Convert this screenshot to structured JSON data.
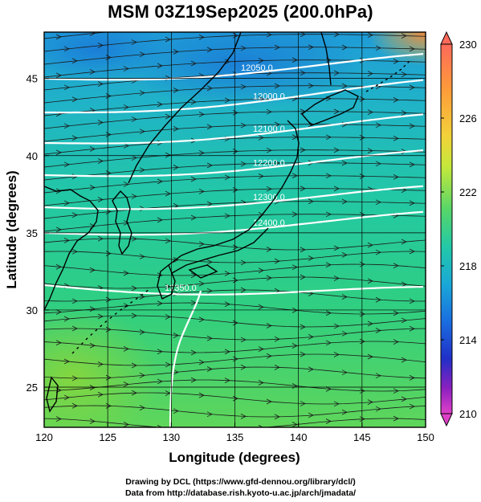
{
  "title": "MSM 03Z19Sep2025 (200.0hPa)",
  "map": {
    "lon_range": [
      120,
      150
    ],
    "lat_range": [
      22.4,
      48
    ],
    "x_ticks": [
      "120",
      "125",
      "130",
      "135",
      "140",
      "145",
      "150"
    ],
    "y_ticks": [
      "25",
      "30",
      "35",
      "40",
      "45"
    ],
    "xlabel": "Longitude (degrees)",
    "ylabel": "Latitude  (degrees)",
    "field_colors": {
      "north": "#1f9bd8",
      "mid": "#22c8a4",
      "south": "#5fd65a",
      "southwest": "#7fd63a",
      "northeast": "#f08a3a"
    },
    "contour_labels": [
      "12050.0",
      "12000.0",
      "12100.0",
      "12200.0",
      "12300.0",
      "12400.0",
      "12350.0"
    ]
  },
  "colorbar": {
    "ticks": [
      "230",
      "226",
      "222",
      "218",
      "214",
      "210"
    ],
    "colors": [
      "#ff6a5a",
      "#ff9a3a",
      "#f2d23a",
      "#c6e83a",
      "#55d66a",
      "#22c8a8",
      "#1aa8d8",
      "#1a6ee0",
      "#2030c8",
      "#8a20c0",
      "#e040c8"
    ]
  },
  "credit": {
    "line1": "Drawing by DCL (https://www.gfd-dennou.org/library/dcl/)",
    "line2": "Data from http://database.rish.kyoto-u.ac.jp/arch/jmadata/"
  }
}
